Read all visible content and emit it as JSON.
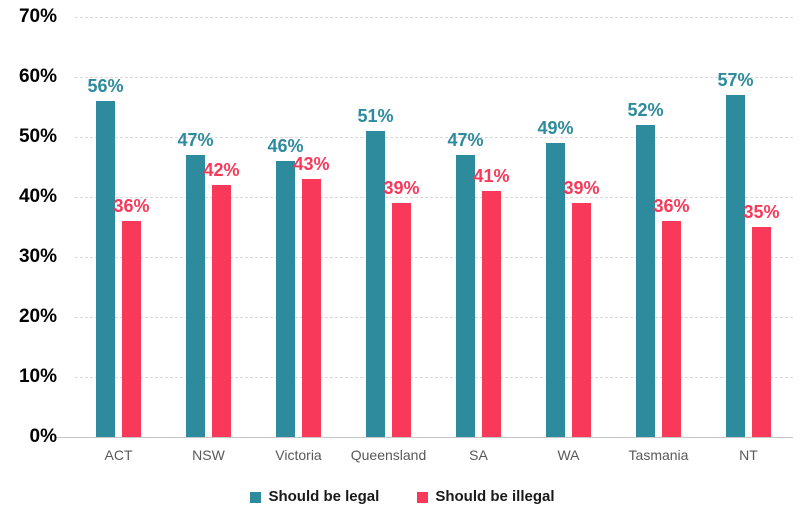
{
  "chart_data": {
    "type": "bar",
    "title": "",
    "categories": [
      "ACT",
      "NSW",
      "Victoria",
      "Queensland",
      "SA",
      "WA",
      "Tasmania",
      "NT"
    ],
    "series": [
      {
        "name": "Should be legal",
        "color": "#2E8B9D",
        "values": [
          56,
          47,
          46,
          51,
          47,
          49,
          52,
          57
        ],
        "labels": [
          "56%",
          "47%",
          "46%",
          "51%",
          "47%",
          "49%",
          "52%",
          "57%"
        ]
      },
      {
        "name": "Should be illegal",
        "color": "#F8395A",
        "values": [
          36,
          42,
          43,
          39,
          41,
          39,
          36,
          35
        ],
        "labels": [
          "36%",
          "42%",
          "43%",
          "39%",
          "41%",
          "39%",
          "36%",
          "35%"
        ]
      }
    ],
    "y_axis": {
      "min": 0,
      "max": 70,
      "tick_step": 10,
      "tick_labels": [
        "0%",
        "10%",
        "20%",
        "30%",
        "40%",
        "50%",
        "60%",
        "70%"
      ]
    },
    "grid": "horizontal-dashed",
    "legend_position": "bottom",
    "colors": {
      "grid": "#D9D9D9",
      "baseline": "#C6C6C6",
      "category_label": "#595959",
      "tick_label": "#000000",
      "legend_text": "#1A1A1A",
      "background": "#FFFFFF"
    }
  }
}
